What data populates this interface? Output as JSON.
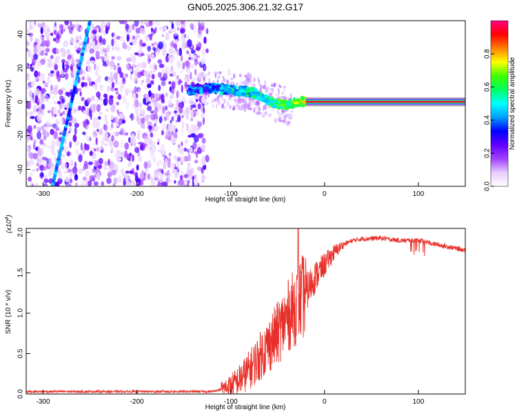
{
  "title": "GN05.2025.306.21.32.G17",
  "chart_data": [
    {
      "type": "heatmap",
      "xlabel": "Height of straight line (km)",
      "ylabel": "Frequency (Hz)",
      "xlim": [
        -318,
        150
      ],
      "ylim": [
        -50,
        48
      ],
      "xticks": [
        -300,
        -200,
        -100,
        0,
        100
      ],
      "xtick_labels": [
        "-300",
        "-200",
        "-100",
        "0",
        "100"
      ],
      "yticks": [
        -40,
        -20,
        0,
        20,
        40
      ],
      "ytick_labels": [
        "-40",
        "-20",
        "0",
        "20",
        "40"
      ],
      "noise_region_x": [
        -318,
        -125
      ],
      "ridge": {
        "x": [
          -145,
          -120,
          -100,
          -85,
          -75,
          -68,
          -60,
          -50,
          -40,
          -30,
          -20,
          -10,
          0,
          20,
          150
        ],
        "y": [
          7,
          8,
          7,
          6,
          5,
          3,
          1,
          -1,
          -2,
          0,
          0,
          -1,
          0,
          0,
          0
        ]
      },
      "steady_tone": {
        "x_start": -20,
        "x_end": 150,
        "freq": 0
      },
      "diagonal_tone": {
        "x": [
          -290,
          -250
        ],
        "y": [
          -50,
          48
        ]
      },
      "colorbar": {
        "label": "Normalized spectral amplitude",
        "ticks": [
          0.0,
          0.2,
          0.4,
          0.6,
          0.8
        ],
        "tick_labels": [
          "0.0",
          "0.2",
          "0.4",
          "0.6",
          "0.8"
        ],
        "range": [
          0,
          1
        ],
        "colors": [
          "#ffffff",
          "#e6ccff",
          "#a040ff",
          "#6000ff",
          "#0000ff",
          "#00a0ff",
          "#00ffff",
          "#00ff60",
          "#40ff00",
          "#ffff00",
          "#ff8000",
          "#ff0000",
          "#ff0080"
        ]
      }
    },
    {
      "type": "line",
      "xlabel": "Height of straight line (km)",
      "ylabel": "SNR (10 * v/v)",
      "exponent_label": "(x10",
      "exponent_power": "4",
      "exponent_close": ")",
      "xlim": [
        -318,
        150
      ],
      "ylim": [
        0,
        2.05
      ],
      "xticks": [
        -300,
        -200,
        -100,
        0,
        100
      ],
      "xtick_labels": [
        "-300",
        "-200",
        "-100",
        "0",
        "100"
      ],
      "yticks": [
        0,
        0.5,
        1.0,
        1.5,
        2.0
      ],
      "ytick_labels": [
        "0.0",
        "0.5",
        "1.0",
        "1.5",
        "2.0"
      ],
      "series": [
        {
          "name": "SNR",
          "color": "#e8302a",
          "x": [
            -318,
            -300,
            -250,
            -200,
            -150,
            -120,
            -110,
            -100,
            -90,
            -80,
            -70,
            -60,
            -50,
            -40,
            -30,
            -20,
            -10,
            0,
            10,
            20,
            30,
            40,
            60,
            80,
            100,
            120,
            150
          ],
          "y": [
            0.03,
            0.03,
            0.03,
            0.03,
            0.03,
            0.03,
            0.06,
            0.1,
            0.18,
            0.3,
            0.45,
            0.6,
            0.75,
            0.95,
            1.1,
            1.25,
            1.45,
            1.6,
            1.75,
            1.85,
            1.9,
            1.92,
            1.93,
            1.9,
            1.9,
            1.85,
            1.78
          ]
        }
      ],
      "spike": {
        "x": -28,
        "y": 2.05
      }
    }
  ]
}
